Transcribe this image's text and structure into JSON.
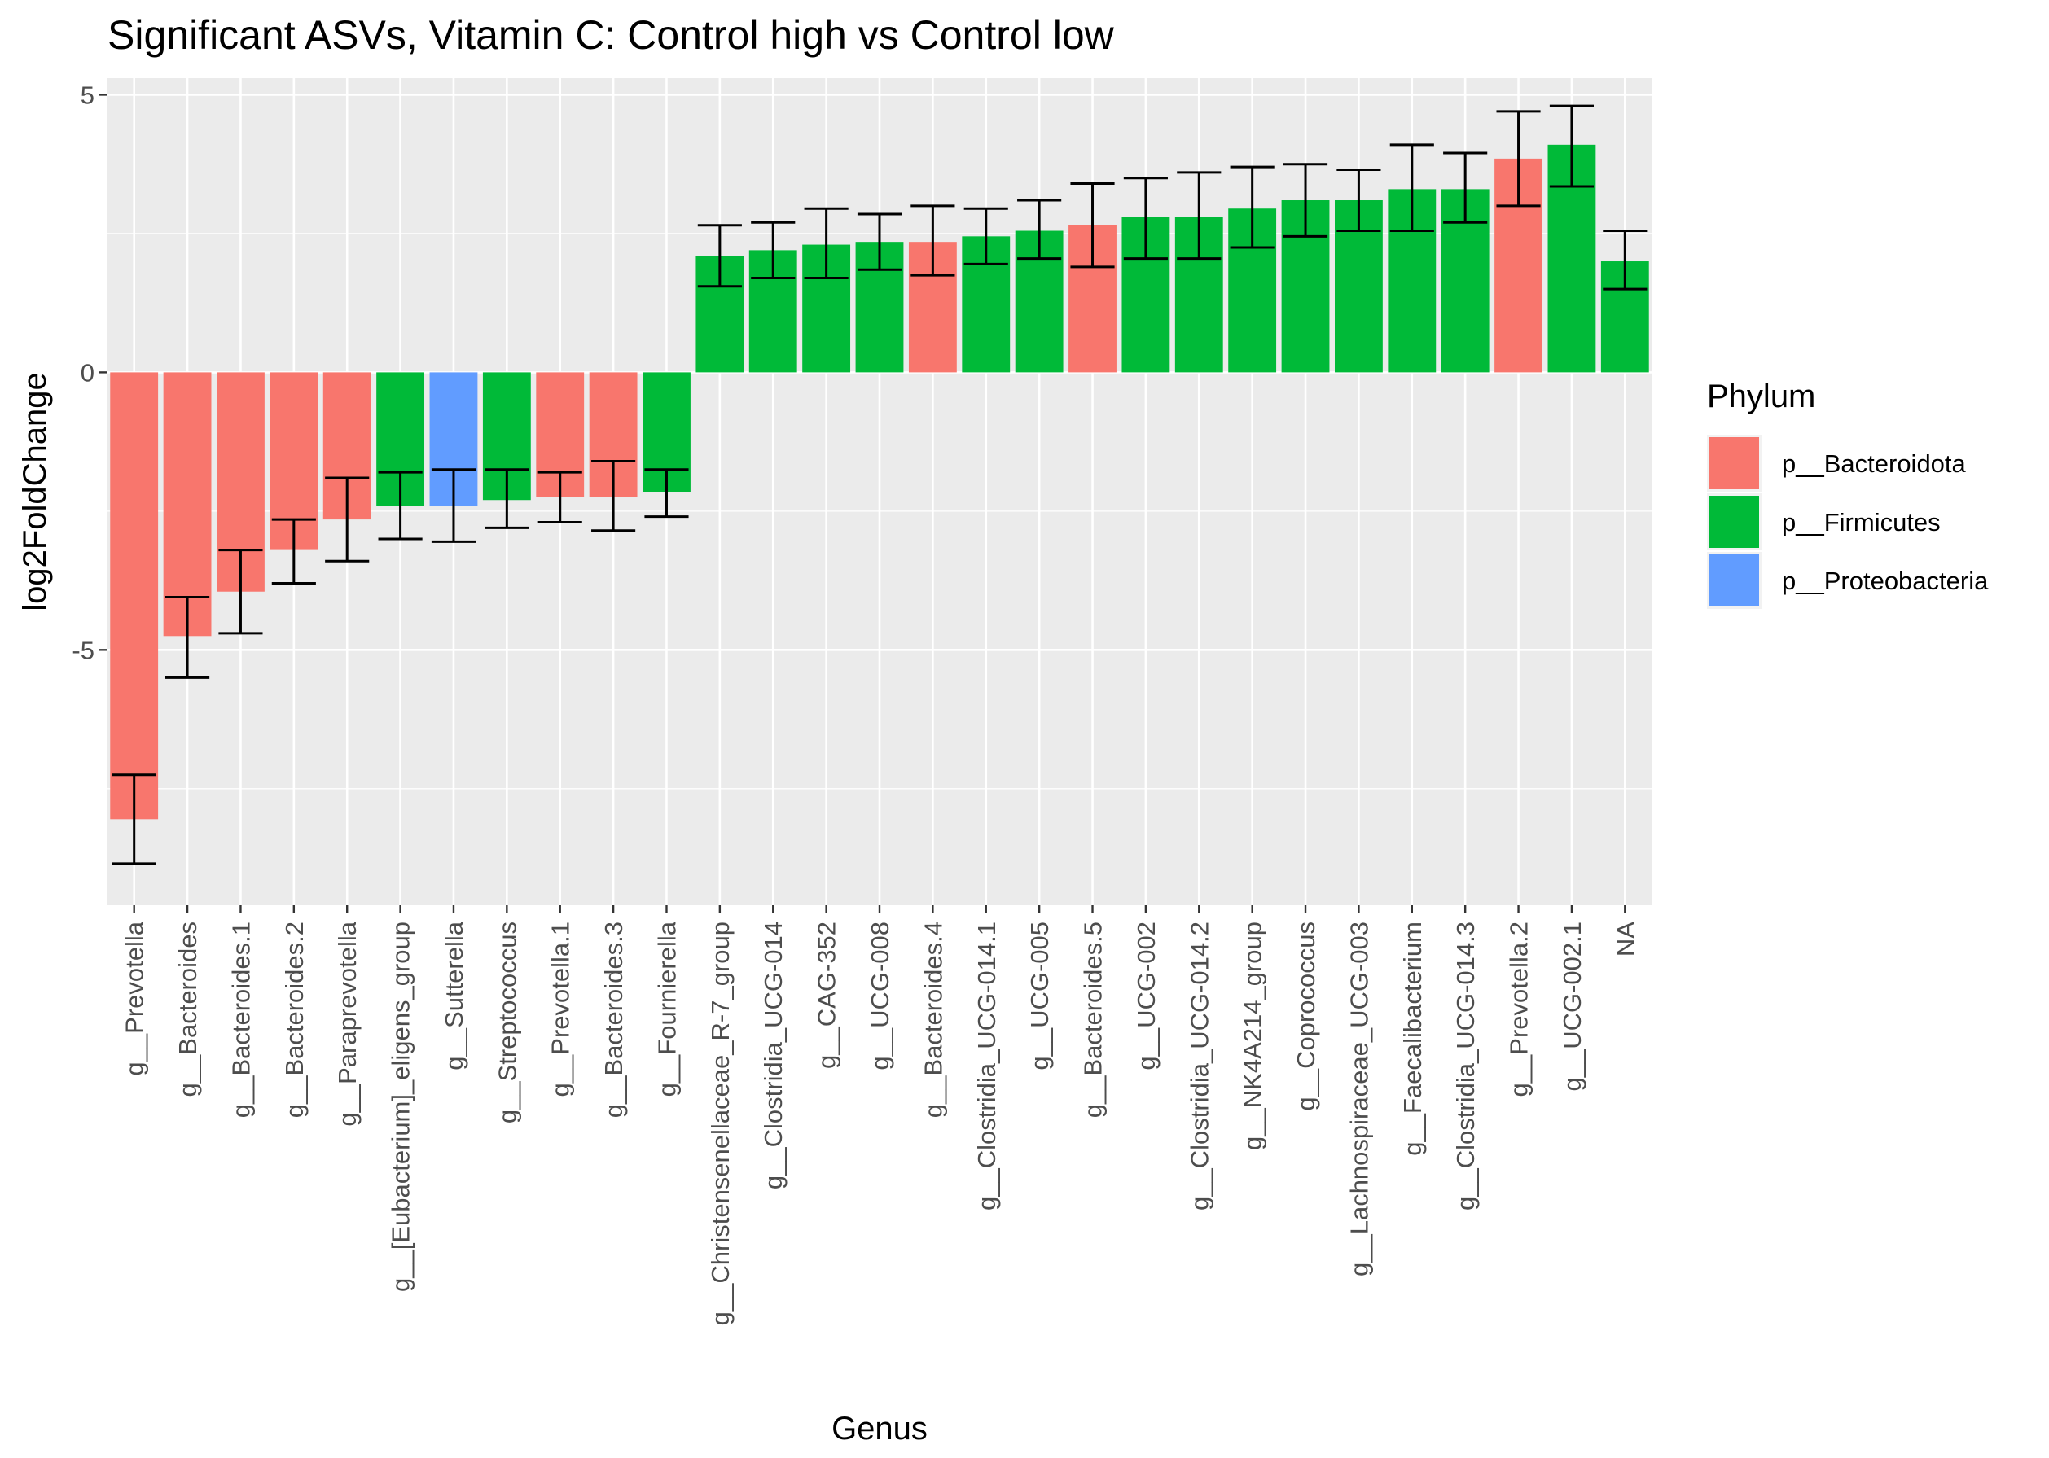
{
  "chart_data": {
    "type": "bar",
    "title": "Significant ASVs, Vitamin C: Control high vs Control low",
    "xlabel": "Genus",
    "ylabel": "log2FoldChange",
    "ylim": [
      -9.6,
      5.3
    ],
    "yticks": [
      5,
      0,
      -5
    ],
    "grid": true,
    "legend_title": "Phylum",
    "legend_position": "right",
    "legend": [
      {
        "label": "p__Bacteroidota",
        "color": "#F8766D"
      },
      {
        "label": "p__Firmicutes",
        "color": "#00BA38"
      },
      {
        "label": "p__Proteobacteria",
        "color": "#619CFF"
      }
    ],
    "categories": [
      "g__Prevotella",
      "g__Bacteroides",
      "g__Bacteroides.1",
      "g__Bacteroides.2",
      "g__Paraprevotella",
      "g__[Eubacterium]_eligens_group",
      "g__Sutterella",
      "g__Streptococcus",
      "g__Prevotella.1",
      "g__Bacteroides.3",
      "g__Fournierella",
      "g__Christensenellaceae_R-7_group",
      "g__Clostridia_UCG-014",
      "g__CAG-352",
      "g__UCG-008",
      "g__Bacteroides.4",
      "g__Clostridia_UCG-014.1",
      "g__UCG-005",
      "g__Bacteroides.5",
      "g__UCG-002",
      "g__Clostridia_UCG-014.2",
      "g__NK4A214_group",
      "g__Coprococcus",
      "g__Lachnospiraceae_UCG-003",
      "g__Faecalibacterium",
      "g__Clostridia_UCG-014.3",
      "g__Prevotella.2",
      "g__UCG-002.1",
      "NA"
    ],
    "series": [
      {
        "values": [
          -8.05,
          -4.75,
          -3.95,
          -3.2,
          -2.65,
          -2.4,
          -2.4,
          -2.3,
          -2.25,
          -2.25,
          -2.15,
          2.1,
          2.2,
          2.3,
          2.35,
          2.35,
          2.45,
          2.55,
          2.65,
          2.8,
          2.8,
          2.95,
          3.1,
          3.1,
          3.3,
          3.3,
          3.85,
          4.1,
          2.0
        ],
        "error_low": [
          -8.85,
          -5.5,
          -4.7,
          -3.8,
          -3.4,
          -3.0,
          -3.05,
          -2.8,
          -2.7,
          -2.85,
          -2.6,
          1.55,
          1.7,
          1.7,
          1.85,
          1.75,
          1.95,
          2.05,
          1.9,
          2.05,
          2.05,
          2.25,
          2.45,
          2.55,
          2.55,
          2.7,
          3.0,
          3.35,
          1.5
        ],
        "error_high": [
          -7.25,
          -4.05,
          -3.2,
          -2.65,
          -1.9,
          -1.8,
          -1.75,
          -1.75,
          -1.8,
          -1.6,
          -1.75,
          2.65,
          2.7,
          2.95,
          2.85,
          3.0,
          2.95,
          3.1,
          3.4,
          3.5,
          3.6,
          3.7,
          3.75,
          3.65,
          4.1,
          3.95,
          4.7,
          4.8,
          2.55
        ],
        "phylum": [
          "p__Bacteroidota",
          "p__Bacteroidota",
          "p__Bacteroidota",
          "p__Bacteroidota",
          "p__Bacteroidota",
          "p__Firmicutes",
          "p__Proteobacteria",
          "p__Firmicutes",
          "p__Bacteroidota",
          "p__Bacteroidota",
          "p__Firmicutes",
          "p__Firmicutes",
          "p__Firmicutes",
          "p__Firmicutes",
          "p__Firmicutes",
          "p__Bacteroidota",
          "p__Firmicutes",
          "p__Firmicutes",
          "p__Bacteroidota",
          "p__Firmicutes",
          "p__Firmicutes",
          "p__Firmicutes",
          "p__Firmicutes",
          "p__Firmicutes",
          "p__Firmicutes",
          "p__Firmicutes",
          "p__Bacteroidota",
          "p__Firmicutes",
          "p__Firmicutes"
        ]
      }
    ]
  }
}
